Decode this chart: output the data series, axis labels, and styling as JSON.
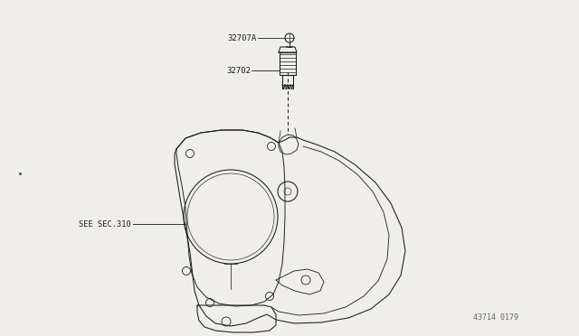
{
  "bg_color": "#f0eeea",
  "line_color": "#1a1a1a",
  "label_32707A": "32707A",
  "label_32702": "32702",
  "label_sec": "SEE SEC.310",
  "label_partno": "43714 0179"
}
